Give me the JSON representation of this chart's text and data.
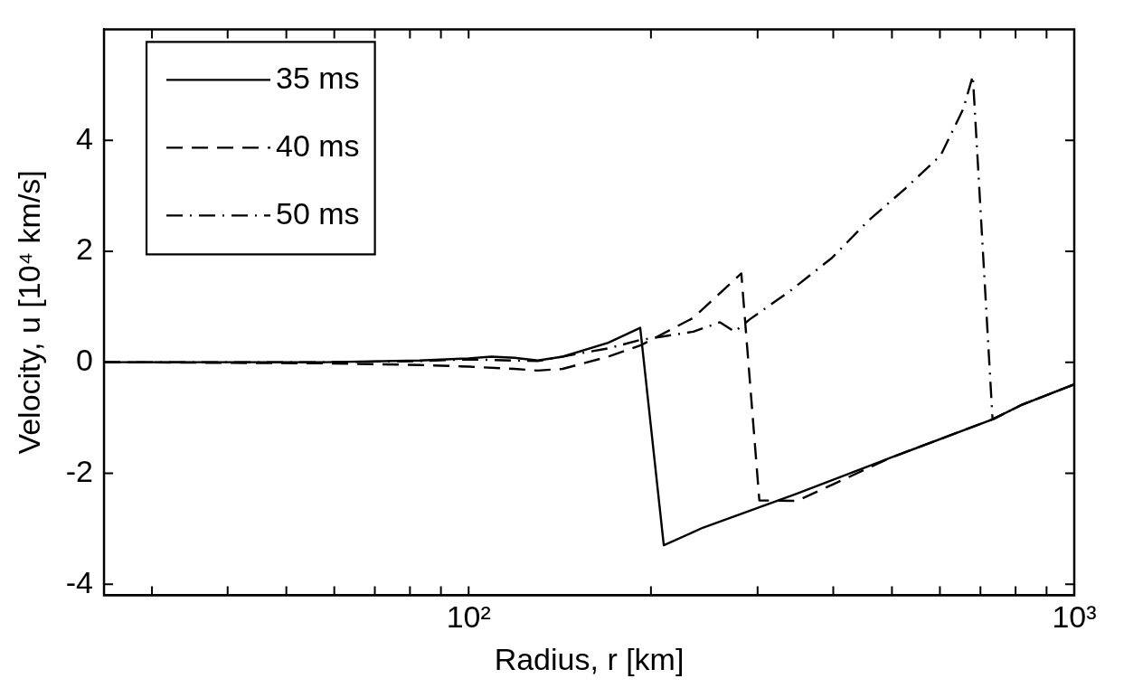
{
  "chart_data": {
    "type": "line",
    "xlabel": "Radius, r [km]",
    "ylabel": "Velocity, u [10⁴ km/s]",
    "log": "x",
    "legend": "top left",
    "marker": "none",
    "xlim": [
      25,
      1000
    ],
    "ylim": [
      -4.2,
      6
    ],
    "xticks": [
      {
        "value": 30,
        "label": null
      },
      {
        "value": 40,
        "label": null
      },
      {
        "value": 50,
        "label": null
      },
      {
        "value": 60,
        "label": null
      },
      {
        "value": 70,
        "label": null
      },
      {
        "value": 80,
        "label": null
      },
      {
        "value": 90,
        "label": null
      },
      {
        "value": 100,
        "label": "10²"
      },
      {
        "value": 200,
        "label": null
      },
      {
        "value": 300,
        "label": null
      },
      {
        "value": 400,
        "label": null
      },
      {
        "value": 500,
        "label": null
      },
      {
        "value": 600,
        "label": null
      },
      {
        "value": 700,
        "label": null
      },
      {
        "value": 800,
        "label": null
      },
      {
        "value": 900,
        "label": null
      },
      {
        "value": 1000,
        "label": "10³"
      }
    ],
    "yticks": [
      -4,
      -2,
      0,
      2,
      4
    ],
    "series": [
      {
        "name": "35 ms",
        "color": "#000000",
        "line_style": "solid",
        "x": [
          25,
          58,
          83,
          100,
          109,
          119,
          130,
          143,
          170,
          192,
          210,
          244,
          348,
          498,
          733,
          822,
          1000
        ],
        "values": [
          0,
          0,
          0.03,
          0.07,
          0.1,
          0.08,
          0.03,
          0.1,
          0.35,
          0.62,
          -3.3,
          -2.98,
          -2.37,
          -1.72,
          -1.03,
          -0.76,
          -0.4
        ]
      },
      {
        "name": "40 ms",
        "color": "#000000",
        "line_style": "dashed",
        "x": [
          25,
          58,
          83,
          100,
          119,
          130,
          143,
          170,
          192,
          235,
          282,
          302,
          348,
          400,
          498,
          733,
          822,
          1000
        ],
        "values": [
          0,
          -0.02,
          -0.05,
          -0.08,
          -0.12,
          -0.15,
          -0.12,
          0.1,
          0.3,
          0.8,
          1.6,
          -2.49,
          -2.5,
          -2.2,
          -1.72,
          -1.03,
          -0.76,
          -0.4
        ]
      },
      {
        "name": "50 ms",
        "color": "#000000",
        "line_style": "dashdot",
        "x": [
          25,
          58,
          83,
          100,
          130,
          170,
          192,
          235,
          260,
          275,
          291,
          340,
          398,
          456,
          526,
          602,
          656,
          680,
          733,
          822,
          1000
        ],
        "values": [
          0,
          0,
          0.02,
          0.05,
          0.02,
          0.25,
          0.4,
          0.55,
          0.72,
          0.55,
          0.77,
          1.29,
          1.88,
          2.54,
          3.13,
          3.73,
          4.57,
          5.16,
          -1.03,
          -0.76,
          -0.4
        ]
      }
    ]
  }
}
